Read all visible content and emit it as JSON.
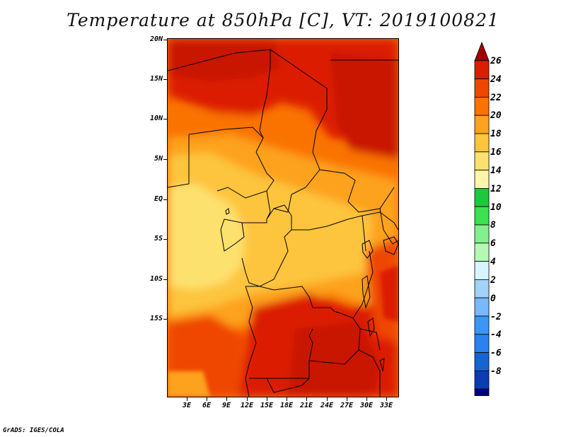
{
  "title": "Temperature at 850hPa [C], VT: 2019100821",
  "footer": "GrADS: IGES/COLA",
  "map": {
    "lat_labels": [
      "20N",
      "15N",
      "10N",
      "5N",
      "EQ",
      "5S",
      "10S",
      "15S"
    ],
    "lon_labels": [
      "3E",
      "6E",
      "9E",
      "12E",
      "15E",
      "18E",
      "21E",
      "24E",
      "27E",
      "30E",
      "33E"
    ]
  },
  "colorbar": {
    "labels": [
      "26",
      "24",
      "22",
      "20",
      "18",
      "16",
      "14",
      "12",
      "10",
      "8",
      "6",
      "4",
      "2",
      "0",
      "-2",
      "-4",
      "-6",
      "-8"
    ],
    "colors": [
      "#a00000",
      "#dc1e00",
      "#ef4600",
      "#fa7300",
      "#fda21e",
      "#fdc43c",
      "#fde16e",
      "#fff5aa",
      "#1ec83c",
      "#3ce150",
      "#82f08c",
      "#b4fab4",
      "#d7f5ff",
      "#a0d2fa",
      "#78b9fa",
      "#3c96f5",
      "#2882f0",
      "#1464d2",
      "#0a3cb4",
      "#000082",
      "#e6dcff"
    ]
  }
}
